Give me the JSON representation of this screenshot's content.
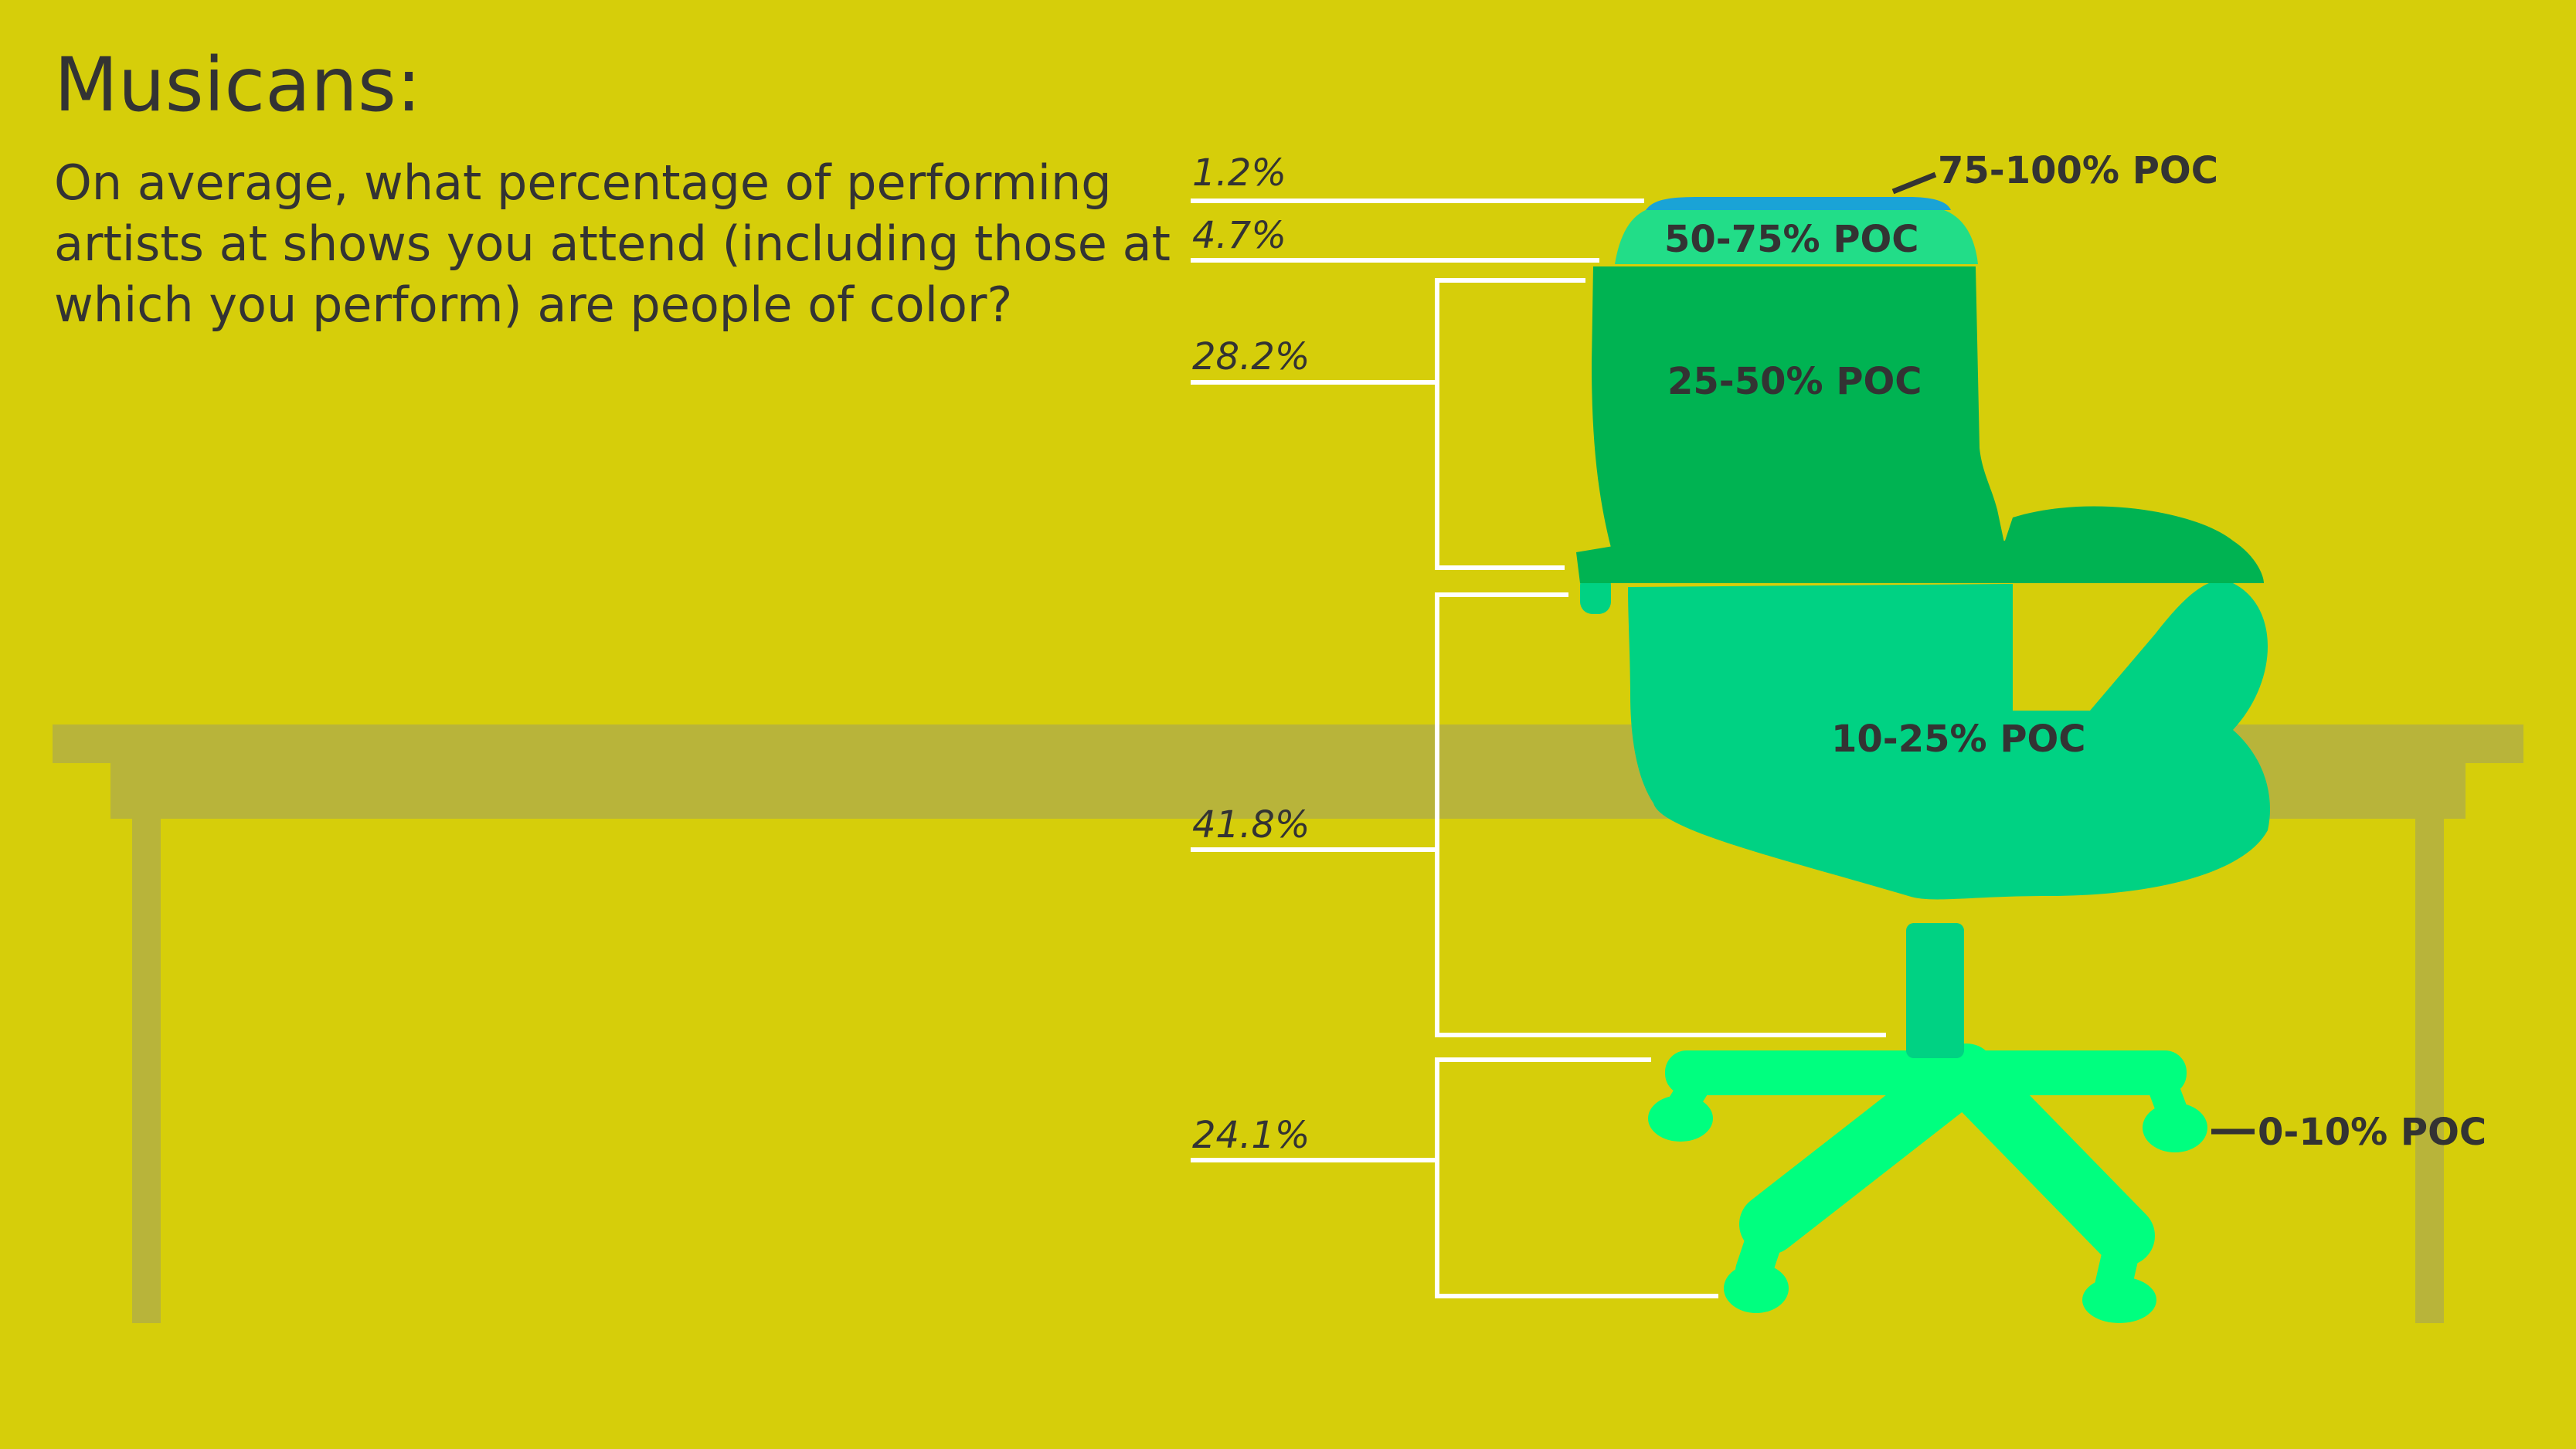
{
  "title": "Musicans:",
  "question_lines": [
    "On average, what percentage of performing",
    "artists at shows you attend (including those at",
    "which you perform) are people of color?"
  ],
  "colors": {
    "background": "#D6CE0A",
    "table": "#B8B43A",
    "text": "#333333",
    "bracket": "#FFFFFF",
    "seg_75_100": "#1AA3D6",
    "seg_50_75": "#22DD88",
    "seg_25_50": "#00B352",
    "seg_10_25": "#00D283",
    "seg_0_10": "#00FF7F"
  },
  "chart_data": {
    "type": "bar",
    "title": "On average, what percentage of performing artists at shows you attend (including those at which you perform) are people of color?",
    "categories": [
      "75-100% POC",
      "50-75% POC",
      "25-50% POC",
      "10-25% POC",
      "0-10% POC"
    ],
    "values": [
      1.2,
      4.7,
      28.2,
      41.8,
      24.1
    ],
    "value_labels": [
      "1.2%",
      "4.7%",
      "28.2%",
      "41.8%",
      "24.1%"
    ],
    "unit": "%",
    "legend": "none"
  }
}
